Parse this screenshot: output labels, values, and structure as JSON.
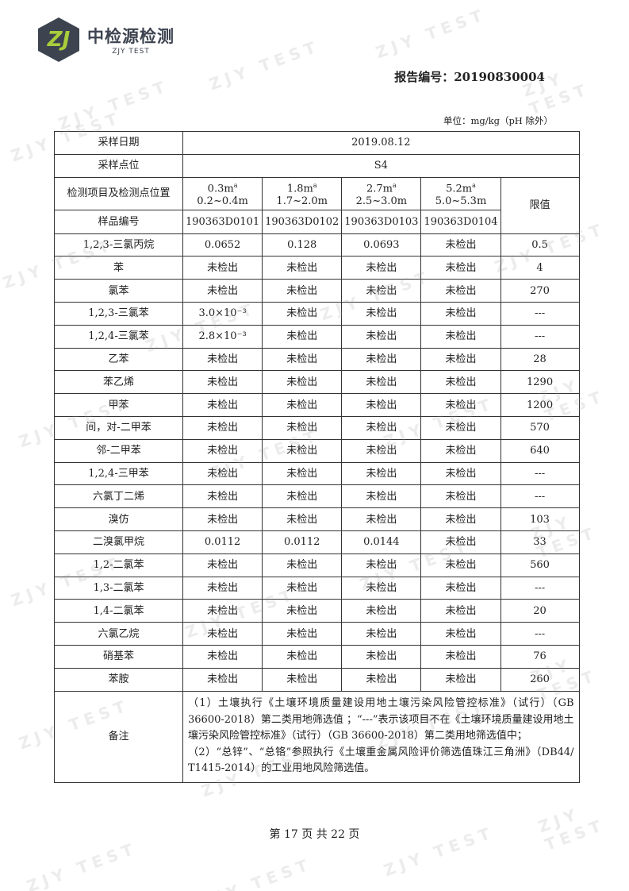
{
  "header": {
    "logo_mark": "ZJ",
    "logo_cn": "中检源检测",
    "logo_en": "ZJY TEST",
    "report_no": "报告编号：20190830004"
  },
  "unit": "单位：mg/kg（pH 除外）",
  "table": {
    "date_label": "采样日期",
    "date": "2019.08.12",
    "point_label": "采样点位",
    "point": "S4",
    "position_label": "检测项目及检测点位置",
    "depths": [
      {
        "depth": "0.3m",
        "sup": "a",
        "range": "0.2~0.4m"
      },
      {
        "depth": "1.8m",
        "sup": "a",
        "range": "1.7~2.0m"
      },
      {
        "depth": "2.7m",
        "sup": "a",
        "range": "2.5~3.0m"
      },
      {
        "depth": "5.2m",
        "sup": "a",
        "range": "5.0~5.3m"
      }
    ],
    "limit_label": "限值",
    "sample_label": "样品编号",
    "samples": [
      "190363D0101",
      "190363D0102",
      "190363D0103",
      "190363D0104"
    ],
    "rows": [
      {
        "name": "1,2,3-三氯丙烷",
        "v": [
          "0.0652",
          "0.128",
          "0.0693",
          "未检出"
        ],
        "limit": "0.5"
      },
      {
        "name": "苯",
        "v": [
          "未检出",
          "未检出",
          "未检出",
          "未检出"
        ],
        "limit": "4"
      },
      {
        "name": "氯苯",
        "v": [
          "未检出",
          "未检出",
          "未检出",
          "未检出"
        ],
        "limit": "270"
      },
      {
        "name": "1,2,3-三氯苯",
        "v": [
          "3.0×10⁻³",
          "未检出",
          "未检出",
          "未检出"
        ],
        "limit": "---"
      },
      {
        "name": "1,2,4-三氯苯",
        "v": [
          "2.8×10⁻³",
          "未检出",
          "未检出",
          "未检出"
        ],
        "limit": "---"
      },
      {
        "name": "乙苯",
        "v": [
          "未检出",
          "未检出",
          "未检出",
          "未检出"
        ],
        "limit": "28"
      },
      {
        "name": "苯乙烯",
        "v": [
          "未检出",
          "未检出",
          "未检出",
          "未检出"
        ],
        "limit": "1290"
      },
      {
        "name": "甲苯",
        "v": [
          "未检出",
          "未检出",
          "未检出",
          "未检出"
        ],
        "limit": "1200"
      },
      {
        "name": "间，对-二甲苯",
        "v": [
          "未检出",
          "未检出",
          "未检出",
          "未检出"
        ],
        "limit": "570"
      },
      {
        "name": "邻-二甲苯",
        "v": [
          "未检出",
          "未检出",
          "未检出",
          "未检出"
        ],
        "limit": "640"
      },
      {
        "name": "1,2,4-三甲苯",
        "v": [
          "未检出",
          "未检出",
          "未检出",
          "未检出"
        ],
        "limit": "---"
      },
      {
        "name": "六氯丁二烯",
        "v": [
          "未检出",
          "未检出",
          "未检出",
          "未检出"
        ],
        "limit": "---"
      },
      {
        "name": "溴仿",
        "v": [
          "未检出",
          "未检出",
          "未检出",
          "未检出"
        ],
        "limit": "103"
      },
      {
        "name": "二溴氯甲烷",
        "v": [
          "0.0112",
          "0.0112",
          "0.0144",
          "未检出"
        ],
        "limit": "33"
      },
      {
        "name": "1,2-二氯苯",
        "v": [
          "未检出",
          "未检出",
          "未检出",
          "未检出"
        ],
        "limit": "560"
      },
      {
        "name": "1,3-二氯苯",
        "v": [
          "未检出",
          "未检出",
          "未检出",
          "未检出"
        ],
        "limit": "---"
      },
      {
        "name": "1,4-二氯苯",
        "v": [
          "未检出",
          "未检出",
          "未检出",
          "未检出"
        ],
        "limit": "20"
      },
      {
        "name": "六氯乙烷",
        "v": [
          "未检出",
          "未检出",
          "未检出",
          "未检出"
        ],
        "limit": "---"
      },
      {
        "name": "硝基苯",
        "v": [
          "未检出",
          "未检出",
          "未检出",
          "未检出"
        ],
        "limit": "76"
      },
      {
        "name": "苯胺",
        "v": [
          "未检出",
          "未检出",
          "未检出",
          "未检出"
        ],
        "limit": "260"
      }
    ],
    "notes_label": "备注",
    "notes": [
      "（1）土壤执行《土壤环境质量建设用地土壤污染风险管控标准》（试行）（GB 36600-2018）第二类用地筛选值 ；“---”表示该项目不在《土壤环境质量建设用地土壤污染风险管控标准》（试行）（GB 36600-2018）第二类用地筛选值中；",
      "（2）“总锌”、“总铬”参照执行《土壤重金属风险评价筛选值珠江三角洲》（DB44/ T1415-2014）的工业用地风险筛选值。"
    ]
  },
  "footer": "第 17 页 共 22 页",
  "watermark": "ZJY TEST"
}
